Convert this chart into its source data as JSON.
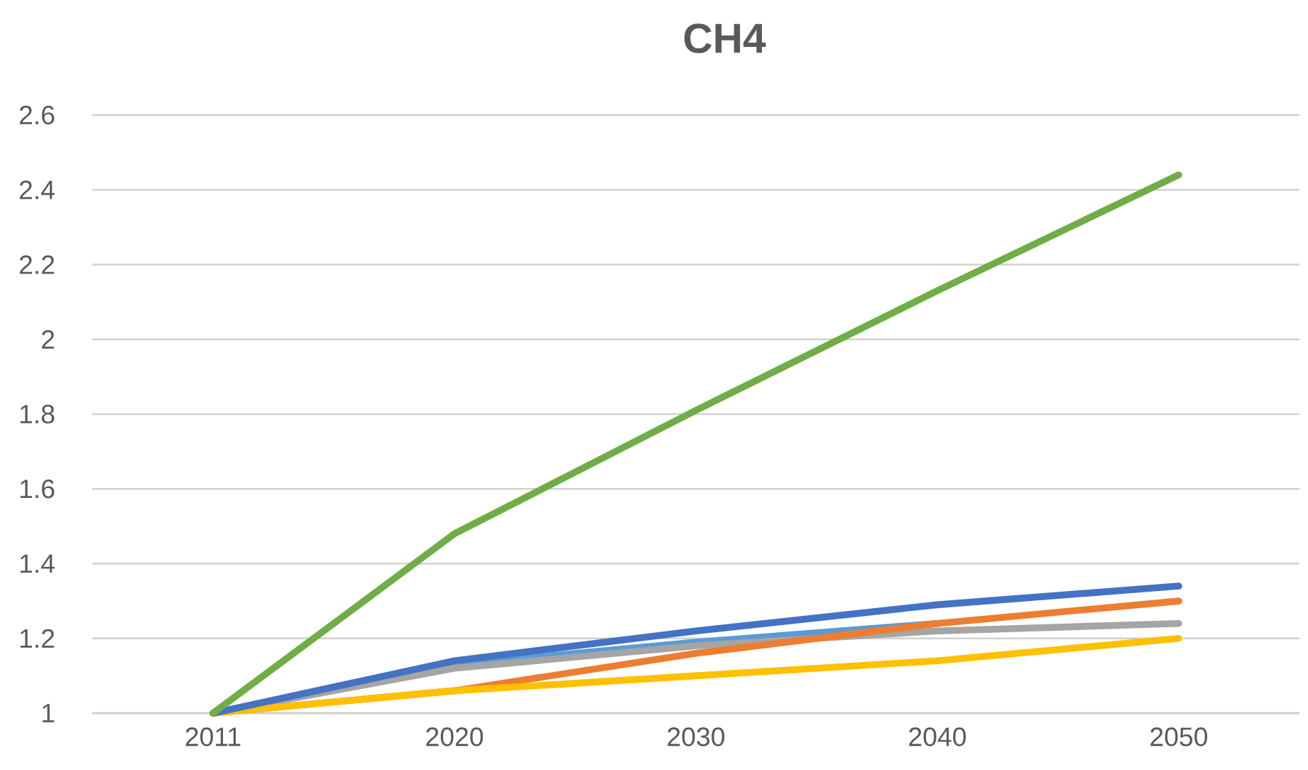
{
  "chart_data": {
    "type": "line",
    "title": "CH4",
    "categories": [
      "2011",
      "2020",
      "2030",
      "2040",
      "2050"
    ],
    "series": [
      {
        "color": "#5b9bd5",
        "values": [
          1,
          1.13,
          1.19,
          1.24,
          null
        ]
      },
      {
        "color": "#a5a5a5",
        "values": [
          1,
          1.12,
          1.18,
          1.22,
          1.24
        ]
      },
      {
        "color": "#ed7d31",
        "values": [
          1,
          1.06,
          1.16,
          1.24,
          1.3
        ]
      },
      {
        "color": "#ffc000",
        "values": [
          1,
          1.06,
          1.1,
          1.14,
          1.2
        ]
      },
      {
        "color": "#4472c4",
        "values": [
          1,
          1.14,
          1.22,
          1.29,
          1.34
        ]
      },
      {
        "color": "#70ad47",
        "values": [
          1,
          1.48,
          1.81,
          2.13,
          2.44
        ]
      }
    ],
    "ylim": [
      1,
      2.6
    ],
    "yticks": [
      1,
      1.2,
      1.4,
      1.6,
      1.8,
      2,
      2.2,
      2.4,
      2.6
    ],
    "grid": "y",
    "legend": false,
    "marker": "none",
    "line_style": "solid"
  }
}
